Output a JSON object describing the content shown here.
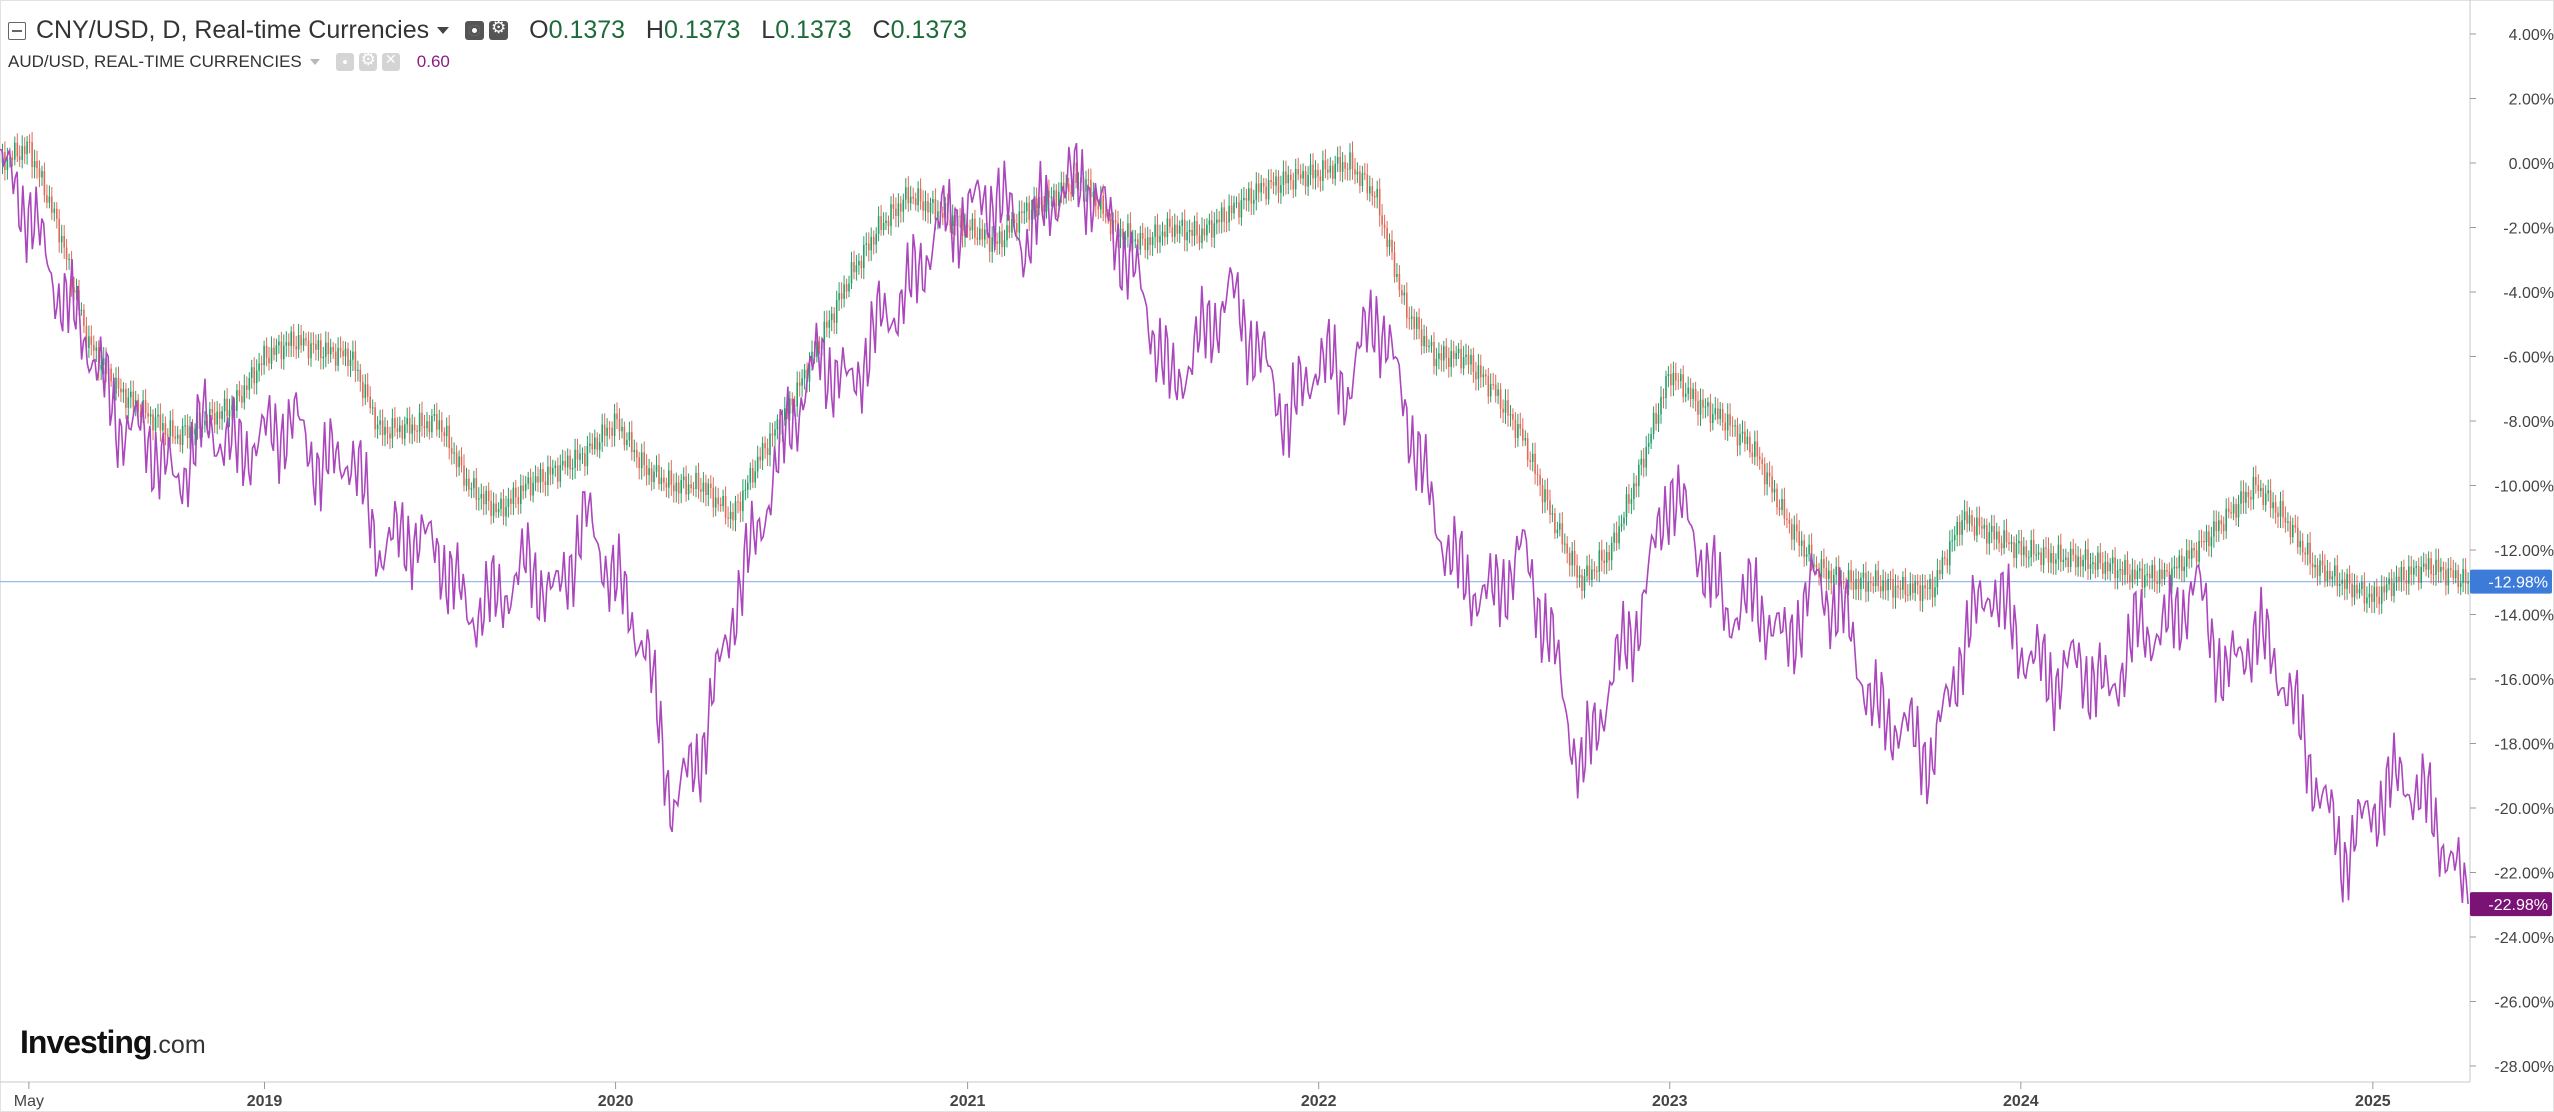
{
  "legend": {
    "main": {
      "title": "CNY/USD, D, Real-time Currencies",
      "open_label": "O",
      "open": "0.1373",
      "high_label": "H",
      "high": "0.1373",
      "low_label": "L",
      "low": "0.1373",
      "close_label": "C",
      "close": "0.1373"
    },
    "compare": {
      "title": "AUD/USD, REAL-TIME CURRENCIES",
      "value": "0.60"
    }
  },
  "logo": {
    "name": "Investing",
    "suffix": ".com"
  },
  "colors": {
    "compare_line": "#ab47bc",
    "candle_up": "#26a069",
    "candle_down": "#e06a57",
    "main_badge": "#3d7bd9",
    "compare_badge": "#7b1275",
    "current_line": "#9ab8f0",
    "axis_text": "#444444"
  },
  "chart_data": {
    "type": "line",
    "y_unit": "% change",
    "ylim": [
      -28.5,
      4.8
    ],
    "y_ticks": [
      "4.00%",
      "2.00%",
      "0.00%",
      "-2.00%",
      "-4.00%",
      "-6.00%",
      "-8.00%",
      "-10.00%",
      "-12.00%",
      "-14.00%",
      "-16.00%",
      "-18.00%",
      "-20.00%",
      "-22.00%",
      "-24.00%",
      "-26.00%",
      "-28.00%"
    ],
    "x_ticks": [
      "May",
      "2019",
      "2020",
      "2021",
      "2022",
      "2023",
      "2024",
      "2025"
    ],
    "x_tick_dates": [
      "2018-05-01",
      "2019-01-01",
      "2020-01-01",
      "2021-01-01",
      "2022-01-01",
      "2023-01-01",
      "2024-01-01",
      "2025-01-01"
    ],
    "xlim": [
      "2018-04-01",
      "2025-04-12"
    ],
    "grid": false,
    "current_value_badges": [
      "-12.98%",
      "-22.98%"
    ],
    "series": [
      {
        "name": "CNY/USD, D, Real-time Currencies",
        "style": "candles",
        "x": [
          "2018-04-01",
          "2018-05-01",
          "2018-06-01",
          "2018-07-01",
          "2018-08-01",
          "2018-09-01",
          "2018-10-01",
          "2018-11-01",
          "2018-12-01",
          "2019-01-01",
          "2019-02-01",
          "2019-03-01",
          "2019-04-01",
          "2019-05-01",
          "2019-06-01",
          "2019-07-01",
          "2019-08-01",
          "2019-09-01",
          "2019-10-01",
          "2019-11-01",
          "2019-12-01",
          "2020-01-01",
          "2020-02-01",
          "2020-03-01",
          "2020-04-01",
          "2020-05-01",
          "2020-06-01",
          "2020-07-01",
          "2020-08-01",
          "2020-09-01",
          "2020-10-01",
          "2020-11-01",
          "2020-12-01",
          "2021-01-01",
          "2021-02-01",
          "2021-03-01",
          "2021-04-01",
          "2021-05-01",
          "2021-06-01",
          "2021-07-01",
          "2021-08-01",
          "2021-09-01",
          "2021-10-01",
          "2021-11-01",
          "2021-12-01",
          "2022-01-01",
          "2022-02-01",
          "2022-03-01",
          "2022-04-01",
          "2022-05-01",
          "2022-06-01",
          "2022-07-01",
          "2022-08-01",
          "2022-09-01",
          "2022-10-01",
          "2022-11-01",
          "2022-12-01",
          "2023-01-01",
          "2023-02-01",
          "2023-03-01",
          "2023-04-01",
          "2023-05-01",
          "2023-06-01",
          "2023-07-01",
          "2023-08-01",
          "2023-09-01",
          "2023-10-01",
          "2023-11-01",
          "2023-12-01",
          "2024-01-01",
          "2024-02-01",
          "2024-03-01",
          "2024-04-01",
          "2024-05-01",
          "2024-06-01",
          "2024-07-01",
          "2024-08-01",
          "2024-09-01",
          "2024-10-01",
          "2024-11-01",
          "2024-12-01",
          "2025-01-01",
          "2025-02-01",
          "2025-03-01",
          "2025-04-10"
        ],
        "values": [
          0.0,
          0.5,
          -2.0,
          -5.5,
          -7.0,
          -7.8,
          -8.5,
          -8.0,
          -7.5,
          -6.0,
          -5.5,
          -5.8,
          -6.0,
          -8.3,
          -8.2,
          -8.0,
          -10.0,
          -10.8,
          -10.0,
          -9.5,
          -9.0,
          -8.0,
          -9.5,
          -10.0,
          -10.0,
          -11.0,
          -9.0,
          -7.5,
          -5.5,
          -3.5,
          -2.0,
          -1.0,
          -1.5,
          -2.0,
          -2.5,
          -1.5,
          -1.0,
          -0.5,
          -2.0,
          -2.5,
          -2.0,
          -2.2,
          -1.5,
          -0.8,
          -0.5,
          -0.3,
          0.0,
          -1.0,
          -4.5,
          -6.0,
          -6.0,
          -7.0,
          -8.5,
          -11.0,
          -13.0,
          -12.0,
          -9.5,
          -6.5,
          -7.5,
          -8.0,
          -9.0,
          -11.0,
          -12.5,
          -13.0,
          -13.0,
          -13.2,
          -13.2,
          -11.0,
          -11.5,
          -12.0,
          -12.2,
          -12.3,
          -12.5,
          -12.8,
          -12.8,
          -12.0,
          -11.0,
          -10.0,
          -11.0,
          -12.5,
          -13.0,
          -13.5,
          -12.8,
          -12.5,
          -12.98
        ]
      },
      {
        "name": "AUD/USD, REAL-TIME CURRENCIES",
        "style": "line",
        "x": [
          "2018-04-01",
          "2018-05-01",
          "2018-06-01",
          "2018-07-01",
          "2018-08-01",
          "2018-09-01",
          "2018-10-01",
          "2018-11-01",
          "2018-12-01",
          "2019-01-01",
          "2019-02-01",
          "2019-03-01",
          "2019-04-01",
          "2019-05-01",
          "2019-06-01",
          "2019-07-01",
          "2019-08-01",
          "2019-09-01",
          "2019-10-01",
          "2019-11-01",
          "2019-12-01",
          "2020-01-01",
          "2020-02-01",
          "2020-03-01",
          "2020-04-01",
          "2020-05-01",
          "2020-06-01",
          "2020-07-01",
          "2020-08-01",
          "2020-09-01",
          "2020-10-01",
          "2020-11-01",
          "2020-12-01",
          "2021-01-01",
          "2021-02-01",
          "2021-03-01",
          "2021-04-01",
          "2021-05-01",
          "2021-06-01",
          "2021-07-01",
          "2021-08-01",
          "2021-09-01",
          "2021-10-01",
          "2021-11-01",
          "2021-12-01",
          "2022-01-01",
          "2022-02-01",
          "2022-03-01",
          "2022-04-01",
          "2022-05-01",
          "2022-06-01",
          "2022-07-01",
          "2022-08-01",
          "2022-09-01",
          "2022-10-01",
          "2022-11-01",
          "2022-12-01",
          "2023-01-01",
          "2023-02-01",
          "2023-03-01",
          "2023-04-01",
          "2023-05-01",
          "2023-06-01",
          "2023-07-01",
          "2023-08-01",
          "2023-09-01",
          "2023-10-01",
          "2023-11-01",
          "2023-12-01",
          "2024-01-01",
          "2024-02-01",
          "2024-03-01",
          "2024-04-01",
          "2024-05-01",
          "2024-06-01",
          "2024-07-01",
          "2024-08-01",
          "2024-09-01",
          "2024-10-01",
          "2024-11-01",
          "2024-12-01",
          "2025-01-01",
          "2025-02-01",
          "2025-03-01",
          "2025-04-10"
        ],
        "values": [
          0.0,
          -1.5,
          -4.0,
          -5.5,
          -8.0,
          -8.5,
          -10.0,
          -8.0,
          -9.0,
          -8.5,
          -8.0,
          -9.5,
          -9.0,
          -12.0,
          -11.5,
          -12.0,
          -14.0,
          -13.5,
          -12.5,
          -13.5,
          -11.0,
          -13.0,
          -15.0,
          -20.0,
          -18.0,
          -14.0,
          -11.0,
          -8.0,
          -6.0,
          -7.0,
          -5.0,
          -4.0,
          -2.0,
          -1.5,
          -1.0,
          -2.5,
          -1.0,
          -0.5,
          -2.0,
          -4.0,
          -7.0,
          -5.5,
          -4.0,
          -6.0,
          -8.0,
          -6.0,
          -7.0,
          -4.5,
          -7.5,
          -11.0,
          -13.0,
          -13.5,
          -12.0,
          -15.0,
          -19.0,
          -16.0,
          -14.0,
          -10.0,
          -12.0,
          -14.0,
          -13.5,
          -15.0,
          -13.0,
          -14.0,
          -17.0,
          -17.5,
          -18.5,
          -15.0,
          -13.0,
          -15.0,
          -16.0,
          -15.5,
          -16.5,
          -14.5,
          -14.5,
          -13.0,
          -16.0,
          -14.5,
          -16.0,
          -19.0,
          -21.5,
          -20.0,
          -19.0,
          -20.0,
          -22.98
        ]
      }
    ]
  }
}
